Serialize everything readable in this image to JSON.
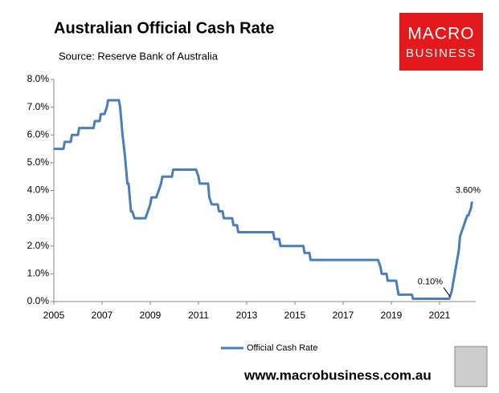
{
  "chart_data": {
    "type": "line",
    "title": "Australian Official Cash Rate",
    "subtitle": "Source: Reserve Bank of Australia",
    "logo": [
      "MACRO",
      "BUSINESS"
    ],
    "footer": "www.macrobusiness.com.au",
    "legend": "bottom",
    "grid": false,
    "xlim": [
      2005,
      2022.5
    ],
    "xticks": [
      2005,
      2007,
      2009,
      2011,
      2013,
      2015,
      2017,
      2019,
      2021
    ],
    "ylim": [
      0,
      8
    ],
    "yticks": [
      {
        "value": 0,
        "label": "0.0%"
      },
      {
        "value": 1,
        "label": "1.0%"
      },
      {
        "value": 2,
        "label": "2.0%"
      },
      {
        "value": 3,
        "label": "3.0%"
      },
      {
        "value": 4,
        "label": "4.0%"
      },
      {
        "value": 5,
        "label": "5.0%"
      },
      {
        "value": 6,
        "label": "6.0%"
      },
      {
        "value": 7,
        "label": "7.0%"
      },
      {
        "value": 8,
        "label": "8.0%"
      }
    ],
    "x": [
      2005.0,
      2005.4,
      2005.45,
      2005.7,
      2005.75,
      2006.0,
      2006.05,
      2006.65,
      2006.7,
      2006.9,
      2006.95,
      2007.1,
      2007.2,
      2007.25,
      2007.7,
      2007.75,
      2007.85,
      2007.95,
      2008.05,
      2008.1,
      2008.2,
      2008.25,
      2008.35,
      2008.8,
      2008.9,
      2009.0,
      2009.05,
      2009.25,
      2009.35,
      2009.45,
      2009.5,
      2009.9,
      2009.95,
      2010.9,
      2011.0,
      2011.05,
      2011.4,
      2011.45,
      2011.55,
      2011.8,
      2011.85,
      2012.0,
      2012.05,
      2012.4,
      2012.45,
      2012.6,
      2012.65,
      2014.1,
      2014.15,
      2014.35,
      2014.4,
      2015.35,
      2015.4,
      2015.6,
      2015.65,
      2018.45,
      2018.55,
      2018.6,
      2018.8,
      2018.85,
      2019.2,
      2019.3,
      2019.85,
      2019.9,
      2021.4,
      2021.5,
      2021.6,
      2021.7,
      2021.8,
      2021.85,
      2021.95,
      2022.05,
      2022.15,
      2022.2,
      2022.3,
      2022.35
    ],
    "series": [
      {
        "name": "Official Cash Rate",
        "color": "#4a7ebb",
        "values": [
          5.5,
          5.5,
          5.75,
          5.75,
          6.0,
          6.0,
          6.25,
          6.25,
          6.5,
          6.5,
          6.75,
          6.75,
          7.0,
          7.25,
          7.25,
          7.0,
          6.0,
          5.25,
          4.25,
          4.25,
          3.25,
          3.25,
          3.0,
          3.0,
          3.25,
          3.5,
          3.75,
          3.75,
          4.0,
          4.25,
          4.5,
          4.5,
          4.75,
          4.75,
          4.5,
          4.25,
          4.25,
          3.75,
          3.5,
          3.5,
          3.25,
          3.25,
          3.0,
          3.0,
          2.75,
          2.75,
          2.5,
          2.5,
          2.25,
          2.25,
          2.0,
          2.0,
          1.75,
          1.75,
          1.5,
          1.5,
          1.25,
          1.0,
          1.0,
          0.75,
          0.75,
          0.25,
          0.25,
          0.1,
          0.1,
          0.35,
          0.85,
          1.35,
          1.85,
          2.35,
          2.6,
          2.85,
          3.1,
          3.1,
          3.35,
          3.6
        ]
      }
    ],
    "annotations": [
      {
        "label": "0.10%",
        "x": 2021.3,
        "y": 0.1
      },
      {
        "label": "3.60%",
        "x": 2022.35,
        "y": 3.6
      }
    ]
  }
}
